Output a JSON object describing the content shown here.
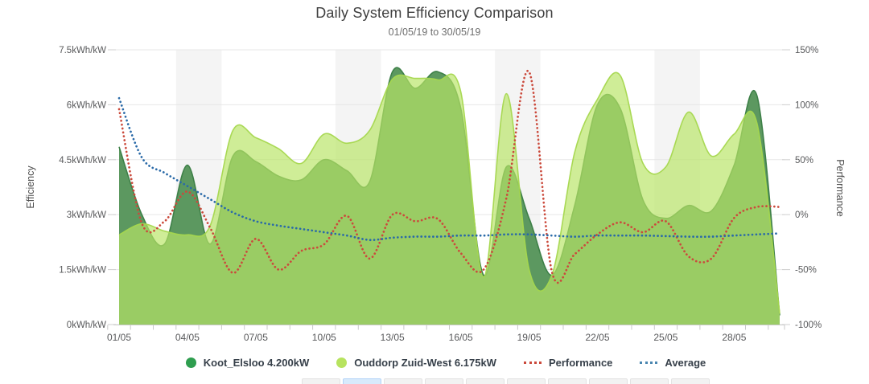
{
  "chart": {
    "title": "Daily System Efficiency Comparison",
    "subtitle": "01/05/19 to 30/05/19",
    "left_axis_title": "Efficiency",
    "right_axis_title": "Performance"
  },
  "chart_data": {
    "type": "area",
    "title": "Daily System Efficiency Comparison",
    "subtitle": "01/05/19 to 30/05/19",
    "grid": true,
    "legend_position": "bottom",
    "x": [
      "01/05",
      "02/05",
      "03/05",
      "04/05",
      "05/05",
      "06/05",
      "07/05",
      "08/05",
      "09/05",
      "10/05",
      "11/05",
      "12/05",
      "13/05",
      "14/05",
      "15/05",
      "16/05",
      "17/05",
      "18/05",
      "19/05",
      "20/05",
      "21/05",
      "22/05",
      "23/05",
      "24/05",
      "25/05",
      "26/05",
      "27/05",
      "28/05",
      "29/05",
      "30/05"
    ],
    "x_label_every": 3,
    "x_tick_labels": [
      "01/05",
      "04/05",
      "07/05",
      "10/05",
      "13/05",
      "16/05",
      "19/05",
      "22/05",
      "25/05",
      "28/05"
    ],
    "left_axis": {
      "title": "Efficiency",
      "tick_labels": [
        "7.5kWh/kW",
        "6kWh/kW",
        "4.5kWh/kW",
        "3kWh/kW",
        "1.5kWh/kW",
        "0kWh/kW"
      ],
      "tick_values": [
        7.5,
        6,
        4.5,
        3,
        1.5,
        0
      ],
      "range": [
        0,
        7.5
      ]
    },
    "right_axis": {
      "title": "Performance",
      "tick_labels": [
        "150%",
        "100%",
        "50%",
        "0%",
        "-50%",
        "-100%"
      ],
      "tick_values": [
        150,
        100,
        50,
        0,
        -50,
        -100
      ],
      "range": [
        -100,
        150
      ]
    },
    "weekend_bands": [
      [
        4,
        5
      ],
      [
        11,
        12
      ],
      [
        18,
        19
      ],
      [
        25,
        26
      ]
    ],
    "band_color": "#f4f4f4",
    "series": [
      {
        "name": "Koot_Elsloo 4.200kW",
        "type": "area",
        "axis": "left",
        "unit": "kWh/kW",
        "color": "#55945a",
        "line_color": "#3e8048",
        "legend_color": "#2f9e4f",
        "fill_opacity": 0.96,
        "values": [
          4.85,
          3.0,
          2.2,
          4.35,
          2.2,
          4.6,
          4.45,
          4.05,
          3.95,
          4.5,
          4.2,
          3.9,
          6.9,
          6.45,
          6.9,
          5.9,
          1.35,
          4.3,
          2.9,
          1.35,
          3.25,
          6.0,
          5.9,
          3.4,
          2.9,
          3.25,
          3.1,
          4.35,
          6.25,
          0.25
        ]
      },
      {
        "name": "Ouddorp Zuid-West 6.175kW",
        "type": "area",
        "axis": "left",
        "unit": "kWh/kW",
        "color": "#b8e465",
        "line_color": "#a5d74e",
        "legend_color": "#b7e35f",
        "fill_opacity": 0.68,
        "values": [
          2.45,
          2.75,
          2.55,
          2.45,
          2.7,
          5.3,
          5.1,
          4.8,
          4.4,
          5.2,
          4.95,
          5.3,
          6.7,
          6.72,
          6.68,
          6.35,
          1.3,
          6.3,
          1.5,
          1.35,
          4.7,
          6.15,
          6.8,
          4.4,
          4.3,
          5.8,
          4.6,
          5.2,
          5.5,
          0.3
        ]
      },
      {
        "name": "Performance",
        "type": "dotted-line",
        "axis": "right",
        "unit": "%",
        "color": "#cb4a3c",
        "legend_color": "#cb4a3c",
        "values": [
          96,
          -8,
          -6,
          21,
          -12,
          -53,
          -22,
          -50,
          -33,
          -27,
          -1,
          -40,
          0,
          -6,
          -4,
          -35,
          -50,
          15,
          130,
          -52,
          -36,
          -18,
          -7,
          -16,
          -6,
          -38,
          -40,
          -3,
          7,
          7
        ]
      },
      {
        "name": "Average",
        "type": "dotted-line",
        "axis": "right",
        "unit": "%",
        "color": "#2a6aa8",
        "legend_color": "#4a86b0",
        "values": [
          106,
          52,
          38,
          26,
          14,
          2,
          -6,
          -10,
          -13,
          -16,
          -19,
          -23,
          -21,
          -20,
          -20,
          -19,
          -19,
          -18,
          -18,
          -19,
          -20,
          -19,
          -19,
          -19,
          -19.5,
          -20,
          -20,
          -19,
          -18,
          -17
        ]
      }
    ]
  },
  "thumbnails": {
    "count": 10,
    "active_index": 1
  }
}
